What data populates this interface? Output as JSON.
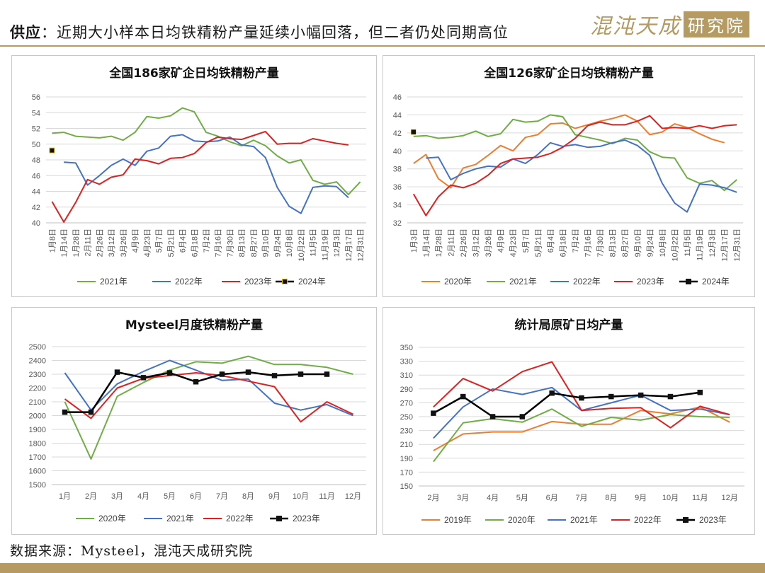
{
  "header": {
    "label": "供应",
    "title": "：近期大小样本日均铁精粉产量延续小幅回落，但二者仍处同期高位",
    "logo_text": "混沌天成",
    "logo_box": "研究院"
  },
  "footer": {
    "source": "数据来源：Mysteel，混沌天成研究院"
  },
  "colors": {
    "2019": "#ed7d31",
    "2020": "#ed7d31",
    "2021": "#70ad47",
    "2022": "#4472c4",
    "2023": "#e02020",
    "2024": "#000000",
    "brand": "#b59a62"
  },
  "chart_data": [
    {
      "id": "c186",
      "type": "line",
      "title": "全国186家矿企日均铁精粉产量",
      "x_tick_labels": [
        "1月8日",
        "1月14日",
        "1月28日",
        "2月11日",
        "2月26日",
        "3月12日",
        "3月26日",
        "4月9日",
        "4月23日",
        "5月7日",
        "5月21日",
        "6月4日",
        "6月18日",
        "7月2日",
        "7月16日",
        "7月30日",
        "8月13日",
        "8月27日",
        "9月10日",
        "9月24日",
        "10月8日",
        "10月22日",
        "11月5日",
        "11月19日",
        "12月3日",
        "12月17日",
        "12月31日"
      ],
      "ylim": [
        40,
        56
      ],
      "yticks": [
        40,
        42,
        44,
        46,
        48,
        50,
        52,
        54,
        56
      ],
      "n_points": 27,
      "series": [
        {
          "name": "2021年",
          "color_key": "2021",
          "values": [
            51.4,
            51.5,
            51.0,
            50.9,
            50.8,
            51.0,
            50.5,
            51.5,
            53.5,
            53.3,
            53.6,
            54.6,
            54.1,
            51.5,
            51.0,
            50.3,
            49.8,
            50.5,
            49.8,
            48.5,
            47.6,
            48.0,
            45.4,
            44.9,
            45.2,
            43.6,
            45.2
          ]
        },
        {
          "name": "2022年",
          "color_key": "2022",
          "values": [
            null,
            47.7,
            47.6,
            44.8,
            46.0,
            47.3,
            48.1,
            47.3,
            49.1,
            49.5,
            51.0,
            51.2,
            50.4,
            50.3,
            50.4,
            50.9,
            49.9,
            49.7,
            48.3,
            44.5,
            42.1,
            41.2,
            44.5,
            44.7,
            44.6,
            43.2,
            null
          ]
        },
        {
          "name": "2023年",
          "color_key": "2023",
          "values": [
            42.7,
            40.1,
            42.6,
            45.5,
            44.9,
            45.8,
            46.1,
            48.1,
            47.9,
            47.5,
            48.2,
            48.3,
            48.8,
            50.2,
            50.9,
            50.7,
            50.6,
            51.1,
            51.6,
            50.0,
            50.1,
            50.1,
            50.7,
            50.4,
            50.1,
            49.9,
            null
          ]
        },
        {
          "name": "2024年",
          "color_key": "2024",
          "values": [
            49.2,
            null,
            null,
            null,
            null,
            null,
            null,
            null,
            null,
            null,
            null,
            null,
            null,
            null,
            null,
            null,
            null,
            null,
            null,
            null,
            null,
            null,
            null,
            null,
            null,
            null,
            null
          ],
          "marker": "square"
        }
      ]
    },
    {
      "id": "c126",
      "type": "line",
      "title": "全国126家矿企日均铁精粉产量",
      "x_tick_labels": [
        "1月3日",
        "1月14日",
        "1月28日",
        "2月11日",
        "2月26日",
        "3月12日",
        "3月26日",
        "4月9日",
        "4月23日",
        "5月7日",
        "5月21日",
        "6月4日",
        "6月18日",
        "7月2日",
        "7月16日",
        "7月30日",
        "8月13日",
        "8月27日",
        "9月10日",
        "9月24日",
        "10月8日",
        "10月22日",
        "11月5日",
        "11月19日",
        "12月3日",
        "12月17日",
        "12月31日"
      ],
      "ylim": [
        32,
        46
      ],
      "yticks": [
        32,
        34,
        36,
        38,
        40,
        42,
        44,
        46
      ],
      "n_points": 27,
      "series": [
        {
          "name": "2020年",
          "color_key": "2020",
          "values": [
            38.6,
            39.6,
            36.9,
            35.9,
            38.1,
            38.5,
            39.5,
            40.6,
            40.0,
            41.5,
            41.8,
            43.0,
            43.1,
            42.5,
            42.9,
            43.3,
            43.6,
            44.0,
            43.3,
            41.8,
            42.1,
            43.0,
            42.6,
            41.9,
            41.3,
            40.9,
            null
          ]
        },
        {
          "name": "2021年",
          "color_key": "2021",
          "values": [
            41.6,
            41.7,
            41.4,
            41.5,
            41.7,
            42.2,
            41.6,
            41.9,
            43.5,
            43.2,
            43.3,
            44.0,
            43.8,
            41.8,
            41.5,
            41.2,
            40.8,
            41.4,
            41.2,
            39.9,
            39.3,
            39.2,
            37.0,
            36.4,
            36.7,
            35.6,
            36.8
          ]
        },
        {
          "name": "2022年",
          "color_key": "2022",
          "values": [
            null,
            39.2,
            39.3,
            36.8,
            37.5,
            38.0,
            38.3,
            38.2,
            39.1,
            38.6,
            39.6,
            40.9,
            40.5,
            40.7,
            40.4,
            40.5,
            40.9,
            41.2,
            40.6,
            39.5,
            36.4,
            34.2,
            33.2,
            36.3,
            36.2,
            35.9,
            35.4
          ]
        },
        {
          "name": "2023年",
          "color_key": "2023",
          "values": [
            35.2,
            32.8,
            34.9,
            36.2,
            35.9,
            36.4,
            37.3,
            38.6,
            39.1,
            39.2,
            39.3,
            39.7,
            40.4,
            41.4,
            42.8,
            43.2,
            42.9,
            42.9,
            43.3,
            43.9,
            42.5,
            42.6,
            42.5,
            42.8,
            42.5,
            42.8,
            42.9
          ]
        },
        {
          "name": "2024年",
          "color_key": "2024",
          "values": [
            42.1,
            null,
            null,
            null,
            null,
            null,
            null,
            null,
            null,
            null,
            null,
            null,
            null,
            null,
            null,
            null,
            null,
            null,
            null,
            null,
            null,
            null,
            null,
            null,
            null,
            null,
            null
          ],
          "marker": "square"
        }
      ]
    },
    {
      "id": "cmys",
      "type": "line",
      "title": "Mysteel月度铁精粉产量",
      "categories": [
        "1月",
        "2月",
        "3月",
        "4月",
        "5月",
        "6月",
        "7月",
        "8月",
        "9月",
        "10月",
        "11月",
        "12月"
      ],
      "ylim": [
        1500,
        2500
      ],
      "yticks": [
        1500,
        1600,
        1700,
        1800,
        1900,
        2000,
        2100,
        2200,
        2300,
        2400,
        2500
      ],
      "n_points": 12,
      "series": [
        {
          "name": "2020年",
          "color_key": "2021",
          "values": [
            2100,
            1685,
            2140,
            2240,
            2330,
            2390,
            2380,
            2430,
            2370,
            2370,
            2350,
            2300
          ]
        },
        {
          "name": "2021年",
          "color_key": "2022",
          "values": [
            2310,
            2040,
            2230,
            2320,
            2400,
            2330,
            2255,
            2265,
            2090,
            2040,
            2080,
            2000
          ]
        },
        {
          "name": "2022年",
          "color_key": "2023",
          "values": [
            2120,
            1980,
            2200,
            2270,
            2290,
            2310,
            2290,
            2250,
            2210,
            1955,
            2100,
            2010
          ]
        },
        {
          "name": "2023年",
          "color_key": "2024",
          "values": [
            2025,
            2025,
            2315,
            2275,
            2310,
            2245,
            2300,
            2315,
            2290,
            2300,
            2300,
            null
          ],
          "marker": "square"
        }
      ]
    },
    {
      "id": "cstat",
      "type": "line",
      "title": "统计局原矿日均产量",
      "categories": [
        "2月",
        "3月",
        "4月",
        "5月",
        "6月",
        "7月",
        "8月",
        "9月",
        "10月",
        "11月",
        "12月"
      ],
      "ylim": [
        150,
        350
      ],
      "yticks": [
        150,
        170,
        190,
        210,
        230,
        250,
        270,
        290,
        310,
        330,
        350
      ],
      "n_points": 11,
      "series": [
        {
          "name": "2019年",
          "color_key": "2019",
          "values": [
            201,
            225,
            228,
            228,
            243,
            239,
            239,
            259,
            254,
            264,
            242
          ]
        },
        {
          "name": "2020年",
          "color_key": "2021",
          "values": [
            185,
            241,
            247,
            242,
            261,
            236,
            249,
            245,
            253,
            250,
            249
          ]
        },
        {
          "name": "2021年",
          "color_key": "2022",
          "values": [
            219,
            264,
            290,
            282,
            292,
            259,
            270,
            281,
            259,
            261,
            253
          ]
        },
        {
          "name": "2022年",
          "color_key": "2023",
          "values": [
            264,
            305,
            287,
            315,
            329,
            259,
            262,
            263,
            234,
            265,
            253
          ]
        },
        {
          "name": "2023年",
          "color_key": "2024",
          "values": [
            255,
            279,
            250,
            250,
            284,
            277,
            279,
            281,
            279,
            285,
            null
          ],
          "marker": "square"
        }
      ]
    }
  ]
}
